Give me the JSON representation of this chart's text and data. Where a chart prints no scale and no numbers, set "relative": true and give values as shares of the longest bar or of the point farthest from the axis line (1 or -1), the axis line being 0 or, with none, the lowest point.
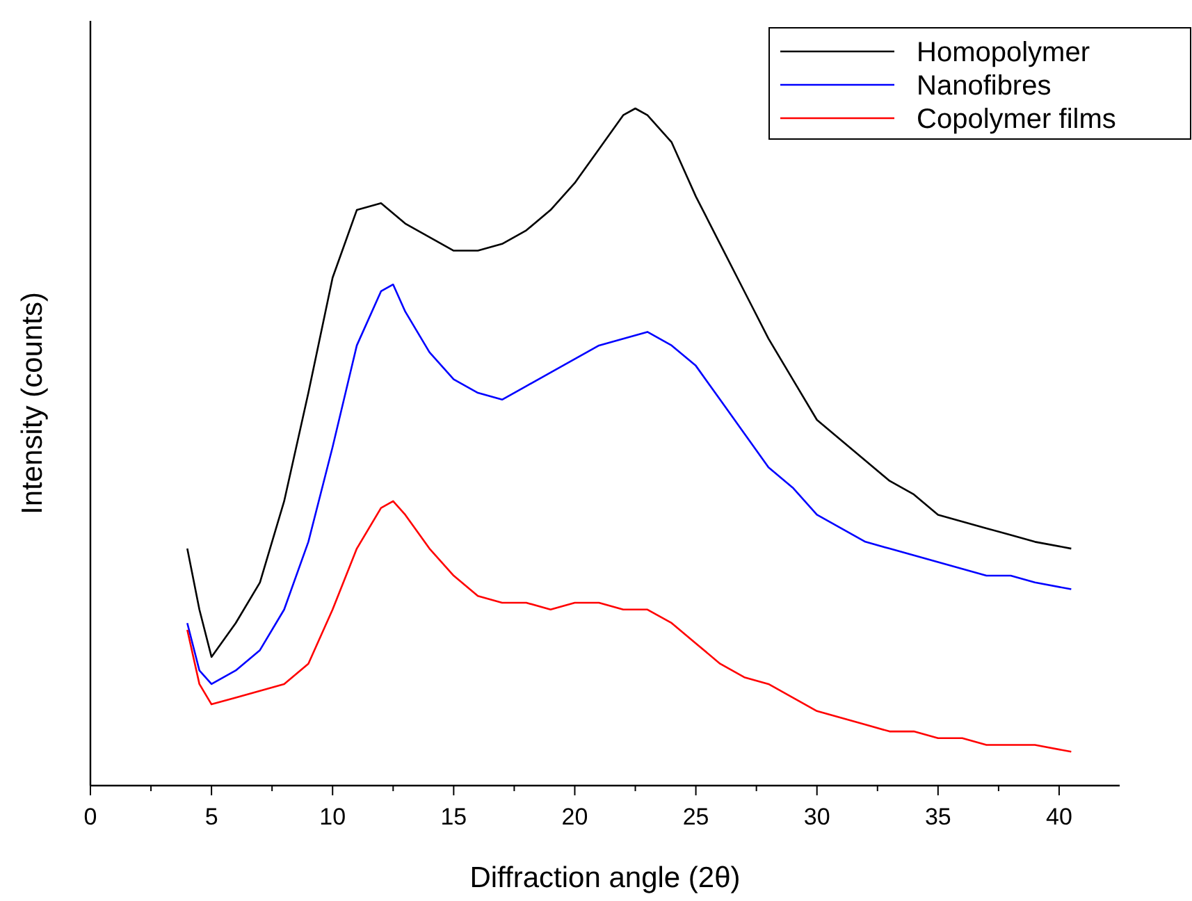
{
  "chart_data": {
    "type": "line",
    "relative": true,
    "xlabel": "Diffraction angle (2θ)",
    "ylabel": "Intensity (counts)",
    "xlim": [
      0,
      42.5
    ],
    "xticks": [
      0,
      {
        "value": 2.5,
        "label": null
      },
      5,
      {
        "value": 7.5,
        "label": null
      },
      10,
      {
        "value": 12.5,
        "label": null
      },
      15,
      {
        "value": 17.5,
        "label": null
      },
      20,
      {
        "value": 22.5,
        "label": null
      },
      25,
      {
        "value": 27.5,
        "label": null
      },
      30,
      {
        "value": 32.5,
        "label": null
      },
      35,
      {
        "value": 37.5,
        "label": null
      },
      40
    ],
    "legend": "top right",
    "grid": false,
    "line_style": "solid",
    "series": [
      {
        "name": "Homopolymer",
        "color": "#000000",
        "x": [
          4,
          4.5,
          5,
          6,
          7,
          8,
          9,
          10,
          11,
          12,
          13,
          14,
          15,
          16,
          17,
          18,
          19,
          20,
          21,
          22,
          22.5,
          23,
          24,
          25,
          26,
          27,
          28,
          29,
          30,
          31,
          32,
          33,
          34,
          35,
          36,
          37,
          38,
          39,
          40.5
        ],
        "values": [
          0.35,
          0.26,
          0.19,
          0.24,
          0.3,
          0.42,
          0.58,
          0.75,
          0.85,
          0.86,
          0.83,
          0.81,
          0.79,
          0.79,
          0.8,
          0.82,
          0.85,
          0.89,
          0.94,
          0.99,
          1,
          0.99,
          0.95,
          0.87,
          0.8,
          0.73,
          0.66,
          0.6,
          0.54,
          0.51,
          0.48,
          0.45,
          0.43,
          0.4,
          0.39,
          0.38,
          0.37,
          0.36,
          0.35
        ]
      },
      {
        "name": "Nanofibres",
        "color": "#0000ff",
        "x": [
          4,
          4.5,
          5,
          6,
          7,
          8,
          9,
          10,
          11,
          12,
          12.5,
          13,
          14,
          15,
          16,
          17,
          18,
          19,
          20,
          21,
          22,
          23,
          24,
          25,
          26,
          27,
          28,
          29,
          30,
          31,
          32,
          33,
          34,
          35,
          36,
          37,
          38,
          39,
          40.5
        ],
        "values": [
          0.24,
          0.17,
          0.15,
          0.17,
          0.2,
          0.26,
          0.36,
          0.5,
          0.65,
          0.73,
          0.74,
          0.7,
          0.64,
          0.6,
          0.58,
          0.57,
          0.59,
          0.61,
          0.63,
          0.65,
          0.66,
          0.67,
          0.65,
          0.62,
          0.57,
          0.52,
          0.47,
          0.44,
          0.4,
          0.38,
          0.36,
          0.35,
          0.34,
          0.33,
          0.32,
          0.31,
          0.31,
          0.3,
          0.29
        ]
      },
      {
        "name": "Copolymer films",
        "color": "#ff0000",
        "x": [
          4,
          4.5,
          5,
          6,
          7,
          8,
          9,
          10,
          11,
          12,
          12.5,
          13,
          14,
          15,
          16,
          17,
          18,
          19,
          20,
          21,
          22,
          23,
          24,
          25,
          26,
          27,
          28,
          29,
          30,
          31,
          32,
          33,
          34,
          35,
          36,
          37,
          38,
          39,
          40.5
        ],
        "values": [
          0.23,
          0.15,
          0.12,
          0.13,
          0.14,
          0.15,
          0.18,
          0.26,
          0.35,
          0.41,
          0.42,
          0.4,
          0.35,
          0.31,
          0.28,
          0.27,
          0.27,
          0.26,
          0.27,
          0.27,
          0.26,
          0.26,
          0.24,
          0.21,
          0.18,
          0.16,
          0.15,
          0.13,
          0.11,
          0.1,
          0.09,
          0.08,
          0.08,
          0.07,
          0.07,
          0.06,
          0.06,
          0.06,
          0.05
        ]
      }
    ]
  }
}
